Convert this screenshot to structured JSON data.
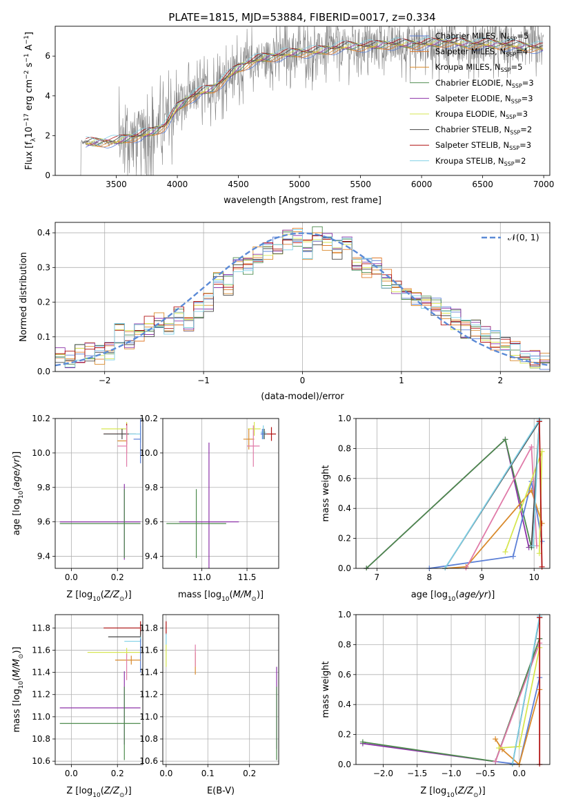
{
  "figure": {
    "title": "PLATE=1815, MJD=53884, FIBERID=0017, z=0.334"
  },
  "colors": {
    "Chabrier MILES": "#5b7fd6",
    "Salpeter MILES": "#e07a2a",
    "Kroupa MILES": "#d98a2c",
    "Chabrier ELODIE": "#4c8a4c",
    "Salpeter ELODIE": "#8c32a8",
    "Kroupa ELODIE": "#d6e650",
    "Chabrier STELIB": "#444444",
    "Salpeter STELIB": "#b01010",
    "Kroupa STELIB": "#7fd0e6",
    "pink": "#e07aa8",
    "data": "#7f7f7f",
    "normal": "#5b8ad6"
  },
  "chart_data": [
    {
      "id": "spectrum",
      "type": "line",
      "xlabel": "wavelength [Angstrom, rest frame]",
      "ylabel": "Flux [f_λ10^-17 erg cm^-2 s^-1 A^-1]",
      "xlim": [
        3000,
        7050
      ],
      "ylim": [
        0,
        7.5
      ],
      "xticks": [
        3500,
        4000,
        4500,
        5000,
        5500,
        6000,
        6500,
        7000
      ],
      "yticks": [
        0,
        2,
        4,
        6
      ],
      "legend_position": "top-right",
      "legend": [
        {
          "label": "Chabrier MILES, N_SSP=5",
          "base": "Chabrier MILES, N",
          "sub": "SSP",
          "tail": "=5"
        },
        {
          "label": "Salpeter MILES, N_SSP=4",
          "base": "Salpeter MILES, N",
          "sub": "SSP",
          "tail": "=4"
        },
        {
          "label": "Kroupa MILES, N_SSP=5",
          "base": "Kroupa MILES, N",
          "sub": "SSP",
          "tail": "=5"
        },
        {
          "label": "Chabrier ELODIE, N_SSP=3",
          "base": "Chabrier ELODIE, N",
          "sub": "SSP",
          "tail": "=3"
        },
        {
          "label": "Salpeter ELODIE, N_SSP=3",
          "base": "Salpeter ELODIE, N",
          "sub": "SSP",
          "tail": "=3"
        },
        {
          "label": "Kroupa ELODIE, N_SSP=3",
          "base": "Kroupa ELODIE, N",
          "sub": "SSP",
          "tail": "=3"
        },
        {
          "label": "Chabrier STELIB, N_SSP=2",
          "base": "Chabrier STELIB, N",
          "sub": "SSP",
          "tail": "=2"
        },
        {
          "label": "Salpeter STELIB, N_SSP=3",
          "base": "Salpeter STELIB, N",
          "sub": "SSP",
          "tail": "=3"
        },
        {
          "label": "Kroupa STELIB, N_SSP=2",
          "base": "Kroupa STELIB, N",
          "sub": "SSP",
          "tail": "=2"
        }
      ],
      "model_continuum": [
        [
          3200,
          1.6
        ],
        [
          3400,
          1.7
        ],
        [
          3500,
          1.7
        ],
        [
          3600,
          1.9
        ],
        [
          3700,
          2.0
        ],
        [
          3800,
          2.2
        ],
        [
          3900,
          2.5
        ],
        [
          4000,
          3.4
        ],
        [
          4100,
          3.9
        ],
        [
          4200,
          4.2
        ],
        [
          4300,
          4.4
        ],
        [
          4400,
          4.9
        ],
        [
          4500,
          5.4
        ],
        [
          4600,
          5.7
        ],
        [
          4700,
          5.9
        ],
        [
          4800,
          6.0
        ],
        [
          4900,
          6.1
        ],
        [
          5000,
          6.2
        ],
        [
          5100,
          6.2
        ],
        [
          5200,
          6.3
        ],
        [
          5300,
          6.4
        ],
        [
          5400,
          6.5
        ],
        [
          5500,
          6.5
        ],
        [
          5600,
          6.5
        ],
        [
          5700,
          6.6
        ],
        [
          5800,
          6.6
        ],
        [
          5900,
          6.6
        ],
        [
          6000,
          6.6
        ],
        [
          6200,
          6.7
        ],
        [
          6400,
          6.6
        ],
        [
          6600,
          6.6
        ],
        [
          6800,
          6.5
        ],
        [
          7000,
          6.4
        ]
      ]
    },
    {
      "id": "residuals",
      "type": "line",
      "xlabel": "(data-model)/error",
      "ylabel": "Normed distribution",
      "xlim": [
        -2.5,
        2.5
      ],
      "ylim": [
        0,
        0.43
      ],
      "xticks": [
        -2,
        -1,
        0,
        1,
        2
      ],
      "yticks": [
        0.0,
        0.1,
        0.2,
        0.3,
        0.4
      ],
      "legend_position": "top-right",
      "legend": [
        {
          "label": "N(0,1)",
          "display": "𝒩(0, 1)"
        }
      ],
      "bins": [
        -2.5,
        -2.4,
        -2.3,
        -2.2,
        -2.1,
        -2.0,
        -1.9,
        -1.8,
        -1.7,
        -1.6,
        -1.5,
        -1.4,
        -1.3,
        -1.2,
        -1.1,
        -1.0,
        -0.9,
        -0.8,
        -0.7,
        -0.6,
        -0.5,
        -0.4,
        -0.3,
        -0.2,
        -0.1,
        0.0,
        0.1,
        0.2,
        0.3,
        0.4,
        0.5,
        0.6,
        0.7,
        0.8,
        0.9,
        1.0,
        1.1,
        1.2,
        1.3,
        1.4,
        1.5,
        1.6,
        1.7,
        1.8,
        1.9,
        2.0,
        2.1,
        2.2,
        2.3,
        2.4,
        2.5
      ],
      "histogram_mean": [
        0.04,
        0.04,
        0.05,
        0.06,
        0.05,
        0.06,
        0.11,
        0.09,
        0.11,
        0.13,
        0.15,
        0.13,
        0.16,
        0.14,
        0.18,
        0.2,
        0.26,
        0.25,
        0.3,
        0.31,
        0.33,
        0.35,
        0.36,
        0.38,
        0.39,
        0.35,
        0.39,
        0.37,
        0.35,
        0.36,
        0.32,
        0.3,
        0.3,
        0.27,
        0.25,
        0.23,
        0.21,
        0.19,
        0.19,
        0.16,
        0.15,
        0.12,
        0.12,
        0.11,
        0.09,
        0.07,
        0.06,
        0.05,
        0.04,
        0.03
      ],
      "normal_curve": {
        "mean": 0.0,
        "sigma": 1.0
      }
    },
    {
      "id": "age_vs_Z",
      "type": "scatter",
      "xlabel": "Z [log10(Z/Z⊙)]",
      "ylabel": "age [log10(age/yr)]",
      "xlim": [
        -0.07,
        0.31
      ],
      "ylim": [
        9.33,
        10.2
      ],
      "xticks": [
        0.0,
        0.2
      ],
      "yticks": [
        9.4,
        9.6,
        9.8,
        10.0,
        10.2
      ],
      "points": [
        {
          "series": "Kroupa ELODIE",
          "x": 0.24,
          "y": 10.14,
          "xerr_lo": 0.11,
          "xerr_hi": 0.0,
          "yerr": 0.04
        },
        {
          "series": "Salpeter STELIB",
          "x": 0.24,
          "y": 10.11,
          "xerr_lo": 0.1,
          "xerr_hi": 0.0,
          "yerr": 0.06
        },
        {
          "series": "Chabrier STELIB",
          "x": 0.22,
          "y": 10.11,
          "xerr_lo": 0.08,
          "xerr_hi": 0.06,
          "yerr": 0.03
        },
        {
          "series": "Kroupa STELIB",
          "x": 0.3,
          "y": 10.11,
          "xerr_lo": 0.05,
          "xerr_hi": 0.0,
          "yerr": 0.05
        },
        {
          "series": "Chabrier MILES",
          "x": 0.3,
          "y": 10.08,
          "xerr_lo": 0.03,
          "xerr_hi": 0.0,
          "yerr": 0.14
        },
        {
          "series": "Kroupa MILES",
          "x": 0.24,
          "y": 10.07,
          "xerr_lo": 0.04,
          "xerr_hi": 0.0,
          "yerr": 0.07
        },
        {
          "series": "pink",
          "x": 0.24,
          "y": 10.04,
          "xerr_lo": 0.04,
          "xerr_hi": 0.0,
          "yerr": 0.12
        },
        {
          "series": "Salpeter ELODIE",
          "x": 0.23,
          "y": 9.6,
          "xerr_lo": 0.28,
          "xerr_hi": 0.07,
          "yerr": 0.22
        },
        {
          "series": "Chabrier ELODIE",
          "x": 0.23,
          "y": 9.59,
          "xerr_lo": 0.28,
          "xerr_hi": 0.07,
          "yerr": 0.2
        }
      ]
    },
    {
      "id": "age_vs_mass",
      "type": "scatter",
      "xlabel": "mass [log10(M/M⊙)]",
      "ylabel": "",
      "xlim": [
        10.57,
        11.85
      ],
      "ylim": [
        9.33,
        10.2
      ],
      "xticks": [
        11.0,
        11.5
      ],
      "yticks": [
        9.4,
        9.6,
        9.8,
        10.0,
        10.2
      ],
      "points": [
        {
          "series": "Kroupa ELODIE",
          "x": 11.58,
          "y": 10.14,
          "xerr": 0.07,
          "yerr": 0.04
        },
        {
          "series": "Salpeter STELIB",
          "x": 11.77,
          "y": 10.11,
          "xerr": 0.05,
          "yerr": 0.04
        },
        {
          "series": "Kroupa STELIB",
          "x": 11.68,
          "y": 10.12,
          "xerr": 0.03,
          "yerr": 0.04
        },
        {
          "series": "Chabrier STELIB",
          "x": 11.69,
          "y": 10.11,
          "xerr": 0.03,
          "yerr": 0.03
        },
        {
          "series": "Chabrier MILES",
          "x": 11.67,
          "y": 10.11,
          "xerr": 0.02,
          "yerr": 0.03
        },
        {
          "series": "Kroupa MILES",
          "x": 11.52,
          "y": 10.08,
          "xerr": 0.06,
          "yerr": 0.06
        },
        {
          "series": "pink",
          "x": 11.57,
          "y": 10.04,
          "xerr": 0.07,
          "yerr": 0.12
        },
        {
          "series": "Salpeter ELODIE",
          "x": 11.08,
          "y": 9.6,
          "xerr": 0.33,
          "yerr": 0.46
        },
        {
          "series": "Chabrier ELODIE",
          "x": 10.94,
          "y": 9.59,
          "xerr": 0.33,
          "yerr": 0.2
        }
      ]
    },
    {
      "id": "massweight_vs_age",
      "type": "line",
      "xlabel": "age [log10(age/yr)]",
      "ylabel": "mass weight",
      "xlim": [
        6.6,
        10.3
      ],
      "ylim": [
        0.0,
        1.0
      ],
      "xticks": [
        7,
        8,
        9,
        10
      ],
      "yticks": [
        0.0,
        0.2,
        0.4,
        0.6,
        0.8,
        1.0
      ],
      "series": [
        {
          "name": "Salpeter ELODIE",
          "points": [
            [
              6.8,
              0.0
            ],
            [
              9.45,
              0.86
            ],
            [
              9.9,
              0.14
            ]
          ]
        },
        {
          "name": "Chabrier ELODIE",
          "points": [
            [
              6.8,
              0.0
            ],
            [
              9.45,
              0.86
            ],
            [
              9.95,
              0.14
            ]
          ]
        },
        {
          "name": "Chabrier MILES",
          "points": [
            [
              8.0,
              0.0
            ],
            [
              9.6,
              0.08
            ],
            [
              9.95,
              0.58
            ],
            [
              10.15,
              0.18
            ]
          ]
        },
        {
          "name": "Kroupa MILES",
          "points": [
            [
              8.3,
              0.0
            ],
            [
              8.7,
              0.01
            ],
            [
              9.95,
              0.52
            ],
            [
              10.15,
              0.3
            ]
          ]
        },
        {
          "name": "pink",
          "points": [
            [
              8.7,
              0.0
            ],
            [
              9.95,
              0.81
            ],
            [
              10.05,
              0.15
            ]
          ]
        },
        {
          "name": "Kroupa ELODIE",
          "points": [
            [
              9.45,
              0.11
            ],
            [
              10.15,
              0.78
            ],
            [
              10.1,
              0.1
            ]
          ]
        },
        {
          "name": "Chabrier STELIB",
          "points": [
            [
              8.3,
              0.0
            ],
            [
              10.1,
              0.98
            ],
            [
              9.95,
              0.15
            ]
          ]
        },
        {
          "name": "Kroupa STELIB",
          "points": [
            [
              8.3,
              0.0
            ],
            [
              10.1,
              0.99
            ],
            [
              9.98,
              0.15
            ]
          ]
        },
        {
          "name": "Salpeter STELIB",
          "points": [
            [
              10.1,
              0.98
            ],
            [
              10.15,
              0.01
            ]
          ]
        }
      ]
    },
    {
      "id": "mass_vs_Z",
      "type": "scatter",
      "xlabel": "Z [log10(Z/Z⊙)]",
      "ylabel": "mass [log10(M/M⊙)]",
      "xlim": [
        -0.07,
        0.31
      ],
      "ylim": [
        10.57,
        11.92
      ],
      "xticks": [
        0.0,
        0.2
      ],
      "yticks": [
        10.6,
        10.8,
        11.0,
        11.2,
        11.4,
        11.6,
        11.8
      ],
      "points": [
        {
          "series": "Salpeter STELIB",
          "x": 0.3,
          "y": 11.8,
          "xerr_lo": 0.16,
          "xerr_hi": 0.0,
          "yerr": 0.06
        },
        {
          "series": "Chabrier STELIB",
          "x": 0.3,
          "y": 11.72,
          "xerr_lo": 0.14,
          "xerr_hi": 0.0,
          "yerr": 0.05
        },
        {
          "series": "Kroupa STELIB",
          "x": 0.3,
          "y": 11.68,
          "xerr_lo": 0.07,
          "xerr_hi": 0.0,
          "yerr": 0.04
        },
        {
          "series": "Kroupa ELODIE",
          "x": 0.24,
          "y": 11.58,
          "xerr_lo": 0.17,
          "xerr_hi": 0.06,
          "yerr": 0.04
        },
        {
          "series": "Chabrier MILES",
          "x": 0.3,
          "y": 11.55,
          "xerr_lo": 0.0,
          "xerr_hi": 0.0,
          "yerr": 0.15
        },
        {
          "series": "Kroupa MILES",
          "x": 0.26,
          "y": 11.51,
          "xerr_lo": 0.07,
          "xerr_hi": 0.04,
          "yerr": 0.04
        },
        {
          "series": "pink",
          "x": 0.24,
          "y": 11.45,
          "xerr_lo": 0.0,
          "xerr_hi": 0.0,
          "yerr": 0.12
        },
        {
          "series": "Salpeter ELODIE",
          "x": 0.23,
          "y": 11.08,
          "xerr_lo": 0.28,
          "xerr_hi": 0.07,
          "yerr": 0.33
        },
        {
          "series": "Chabrier ELODIE",
          "x": 0.23,
          "y": 10.94,
          "xerr_lo": 0.28,
          "xerr_hi": 0.07,
          "yerr": 0.33
        }
      ]
    },
    {
      "id": "mass_vs_ebv",
      "type": "scatter",
      "xlabel": "E(B-V)",
      "ylabel": "",
      "xlim": [
        -0.008,
        0.27
      ],
      "ylim": [
        10.57,
        11.92
      ],
      "xticks": [
        0.0,
        0.1,
        0.2
      ],
      "yticks": [
        10.6,
        10.8,
        11.0,
        11.2,
        11.4,
        11.6,
        11.8
      ],
      "points": [
        {
          "series": "Salpeter STELIB",
          "x": 0.0,
          "y": 11.8,
          "yerr": 0.06
        },
        {
          "series": "Kroupa STELIB",
          "x": 0.0,
          "y": 11.7,
          "yerr": 0.05
        },
        {
          "series": "Kroupa ELODIE",
          "x": 0.0,
          "y": 11.55,
          "yerr": 0.1
        },
        {
          "series": "Kroupa MILES",
          "x": 0.07,
          "y": 11.48,
          "yerr": 0.1
        },
        {
          "series": "pink",
          "x": 0.07,
          "y": 11.55,
          "yerr": 0.1
        },
        {
          "series": "Salpeter ELODIE",
          "x": 0.265,
          "y": 11.08,
          "yerr": 0.37
        },
        {
          "series": "Chabrier ELODIE",
          "x": 0.265,
          "y": 10.94,
          "yerr": 0.33
        }
      ]
    },
    {
      "id": "massweight_vs_Z",
      "type": "line",
      "xlabel": "Z [log10(Z/Z⊙)]",
      "ylabel": "mass weight",
      "xlim": [
        -2.4,
        0.45
      ],
      "ylim": [
        0.0,
        1.0
      ],
      "xticks": [
        -2.0,
        -1.5,
        -1.0,
        -0.5,
        0.0
      ],
      "yticks": [
        0.0,
        0.2,
        0.4,
        0.6,
        0.8,
        1.0
      ],
      "series": [
        {
          "name": "Salpeter ELODIE",
          "points": [
            [
              -2.3,
              0.14
            ],
            [
              -0.35,
              0.02
            ],
            [
              0.3,
              0.84
            ]
          ]
        },
        {
          "name": "Chabrier ELODIE",
          "points": [
            [
              -2.3,
              0.15
            ],
            [
              -0.35,
              0.02
            ],
            [
              0.3,
              0.84
            ]
          ]
        },
        {
          "name": "Chabrier MILES",
          "points": [
            [
              -0.35,
              0.02
            ],
            [
              0.0,
              0.0
            ],
            [
              0.3,
              0.58
            ]
          ]
        },
        {
          "name": "Kroupa MILES",
          "points": [
            [
              -0.35,
              0.17
            ],
            [
              -0.25,
              0.1
            ],
            [
              0.0,
              0.0
            ],
            [
              0.3,
              0.5
            ]
          ]
        },
        {
          "name": "pink",
          "points": [
            [
              -0.35,
              0.02
            ],
            [
              0.3,
              0.81
            ]
          ]
        },
        {
          "name": "Kroupa ELODIE",
          "points": [
            [
              -0.3,
              0.11
            ],
            [
              0.0,
              0.12
            ],
            [
              0.3,
              0.78
            ]
          ]
        },
        {
          "name": "Chabrier STELIB",
          "points": [
            [
              -0.1,
              0.0
            ],
            [
              0.3,
              0.98
            ]
          ]
        },
        {
          "name": "Kroupa STELIB",
          "points": [
            [
              -0.1,
              0.0
            ],
            [
              0.3,
              0.99
            ]
          ]
        },
        {
          "name": "Salpeter STELIB",
          "points": [
            [
              0.3,
              0.0
            ],
            [
              0.3,
              0.98
            ]
          ]
        }
      ]
    }
  ]
}
